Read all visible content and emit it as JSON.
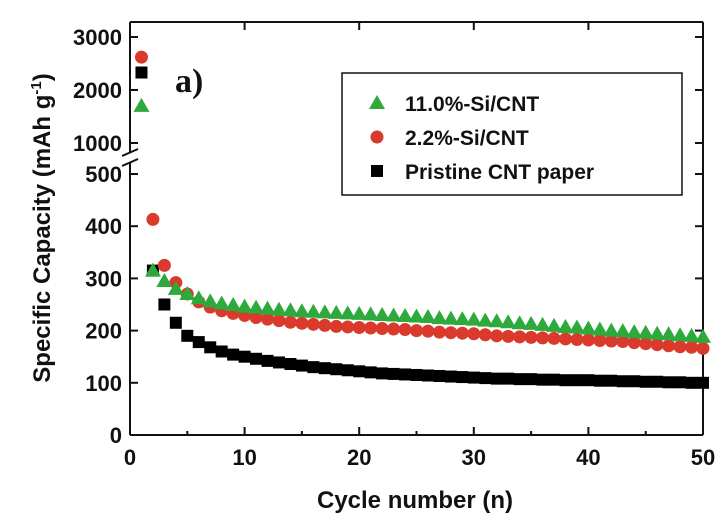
{
  "chart_data": {
    "type": "scatter",
    "panel_label": "a)",
    "xlabel": "Cycle number (n)",
    "ylabel": "Specific Capacity (mAh g",
    "ylabel_superscript": "-1",
    "ylabel_close": ")",
    "xlim": [
      0,
      50
    ],
    "ylim_lower": [
      0,
      500
    ],
    "ylim_upper": [
      1000,
      3000
    ],
    "x_ticks": [
      "0",
      "10",
      "20",
      "30",
      "40",
      "50"
    ],
    "y_ticks_lower": [
      "0",
      "100",
      "200",
      "300",
      "400",
      "500"
    ],
    "y_ticks_upper": [
      "1000",
      "2000",
      "3000"
    ],
    "axis_break": true,
    "grid": false,
    "legend_position": "top-right",
    "series": [
      {
        "name": "11.0%-Si/CNT",
        "marker": "triangle",
        "color": "#2eaa3c",
        "x": [
          1,
          2,
          3,
          4,
          5,
          6,
          7,
          8,
          9,
          10,
          11,
          12,
          13,
          14,
          15,
          16,
          17,
          18,
          19,
          20,
          21,
          22,
          23,
          24,
          25,
          26,
          27,
          28,
          29,
          30,
          31,
          32,
          33,
          34,
          35,
          36,
          37,
          38,
          39,
          40,
          41,
          42,
          43,
          44,
          45,
          46,
          47,
          48,
          49,
          50
        ],
        "y": [
          1700,
          315,
          295,
          280,
          270,
          262,
          256,
          252,
          249,
          246,
          244,
          242,
          240,
          239,
          237,
          236,
          235,
          234,
          233,
          232,
          231,
          230,
          229,
          228,
          227,
          226,
          224,
          223,
          222,
          221,
          219,
          218,
          216,
          214,
          213,
          211,
          209,
          207,
          206,
          204,
          202,
          200,
          199,
          197,
          196,
          194,
          193,
          191,
          190,
          188
        ]
      },
      {
        "name": "2.2%-Si/CNT",
        "marker": "circle",
        "color": "#d93a2b",
        "x": [
          1,
          2,
          3,
          4,
          5,
          6,
          7,
          8,
          9,
          10,
          11,
          12,
          13,
          14,
          15,
          16,
          17,
          18,
          19,
          20,
          21,
          22,
          23,
          24,
          25,
          26,
          27,
          28,
          29,
          30,
          31,
          32,
          33,
          34,
          35,
          36,
          37,
          38,
          39,
          40,
          41,
          42,
          43,
          44,
          45,
          46,
          47,
          48,
          49,
          50
        ],
        "y": [
          2620,
          413,
          325,
          292,
          270,
          255,
          245,
          238,
          233,
          229,
          225,
          222,
          219,
          216,
          214,
          212,
          210,
          208,
          207,
          206,
          205,
          204,
          203,
          202,
          200,
          199,
          197,
          196,
          195,
          194,
          192,
          190,
          189,
          188,
          187,
          186,
          185,
          184,
          183,
          182,
          181,
          180,
          179,
          177,
          175,
          173,
          171,
          169,
          168,
          166
        ]
      },
      {
        "name": "Pristine CNT paper",
        "marker": "square",
        "color": "#000000",
        "x": [
          1,
          2,
          3,
          4,
          5,
          6,
          7,
          8,
          9,
          10,
          11,
          12,
          13,
          14,
          15,
          16,
          17,
          18,
          19,
          20,
          21,
          22,
          23,
          24,
          25,
          26,
          27,
          28,
          29,
          30,
          31,
          32,
          33,
          34,
          35,
          36,
          37,
          38,
          39,
          40,
          41,
          42,
          43,
          44,
          45,
          46,
          47,
          48,
          49,
          50
        ],
        "y": [
          2330,
          315,
          250,
          215,
          190,
          178,
          168,
          160,
          154,
          150,
          146,
          142,
          139,
          136,
          133,
          130,
          128,
          126,
          124,
          122,
          120,
          118,
          117,
          116,
          115,
          114,
          113,
          112,
          111,
          110,
          109,
          108,
          108,
          107,
          107,
          106,
          106,
          105,
          105,
          105,
          104,
          104,
          103,
          103,
          102,
          102,
          101,
          101,
          100,
          100
        ]
      }
    ]
  }
}
